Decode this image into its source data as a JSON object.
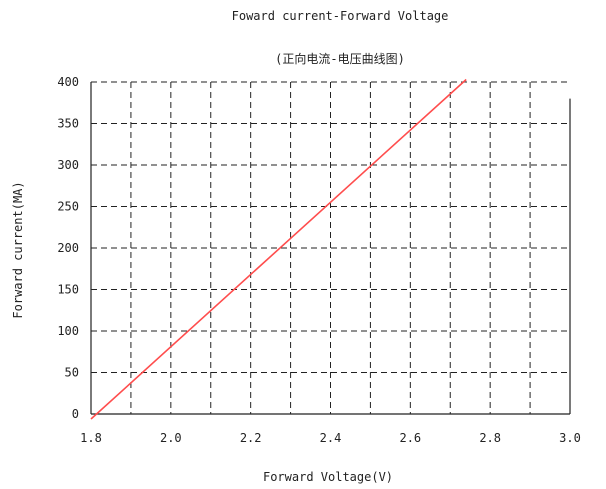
{
  "chart_data": {
    "type": "line",
    "title": "Foward current-Forward Voltage",
    "subtitle": "(正向电流-电压曲线图)",
    "xlabel": "Forward Voltage(V)",
    "ylabel": "Forward current(MA)",
    "xlim": [
      1.8,
      3.0
    ],
    "ylim": [
      0,
      400
    ],
    "x_ticks": [
      "1.8",
      "2.0",
      "2.2",
      "2.4",
      "2.6",
      "2.8",
      "3.0"
    ],
    "y_ticks": [
      "0",
      "50",
      "100",
      "150",
      "200",
      "250",
      "300",
      "350",
      "400"
    ],
    "grid": true,
    "line_color": "#ff4d4d",
    "series": [
      {
        "x": [
          1.8,
          2.74
        ],
        "y": [
          -6,
          403
        ]
      }
    ]
  }
}
